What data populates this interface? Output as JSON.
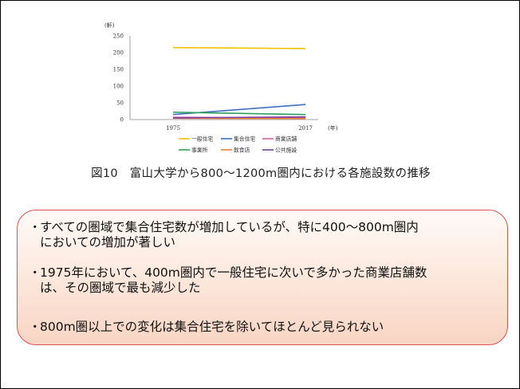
{
  "caption": "図10　富山大学から800～1200m圏内における各施設数の推移",
  "notes": [
    {
      "line1": "すべての圏域で集合住宅数が増加しているが、特に400～800m圏内",
      "line2": "においての増加が著しい"
    },
    {
      "line1": "1975年において、400m圏内で一般住宅に次いで多かった商業店舗数",
      "line2": "は、その圏域で最も減少した"
    },
    {
      "line1": "800m圏以上での変化は集合住宅を除いてほとんど見られない",
      "line2": ""
    }
  ],
  "bullet": "・",
  "chart_data": {
    "type": "line",
    "x": [
      "1975",
      "2017"
    ],
    "y_unit_label": "(軒)",
    "x_unit_label": "(年)",
    "ylim": [
      0,
      250
    ],
    "yticks": [
      0,
      50,
      100,
      150,
      200,
      250
    ],
    "grid": false,
    "legend_position": "bottom",
    "series": [
      {
        "name": "一般住宅",
        "values": [
          215,
          212
        ],
        "color": "#f2c200"
      },
      {
        "name": "集合住宅",
        "values": [
          15,
          45
        ],
        "color": "#3d6fc6"
      },
      {
        "name": "商業店舗",
        "values": [
          7,
          4
        ],
        "color": "#d65fb8"
      },
      {
        "name": "事業所",
        "values": [
          22,
          15
        ],
        "color": "#2fa05a"
      },
      {
        "name": "飲食店",
        "values": [
          4,
          3
        ],
        "color": "#ee7f2f"
      },
      {
        "name": "公共施設",
        "values": [
          5,
          8
        ],
        "color": "#7b3fa3"
      }
    ]
  }
}
